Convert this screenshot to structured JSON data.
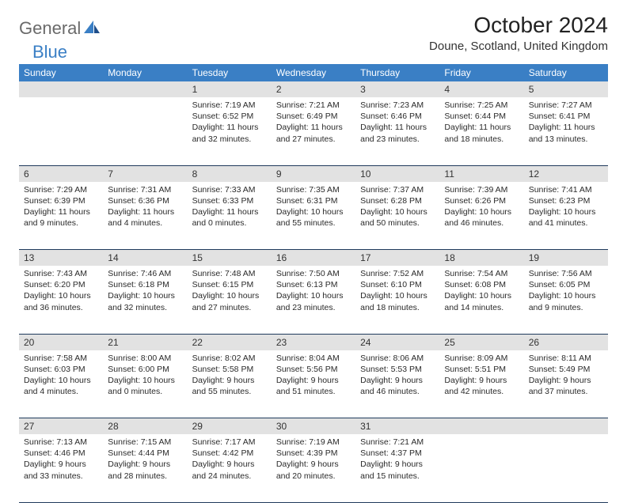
{
  "brand": {
    "general": "General",
    "blue": "Blue"
  },
  "colors": {
    "header_bg": "#3a7fc5",
    "header_fg": "#ffffff",
    "daynum_bg": "#e2e2e2",
    "rule": "#1f3a5c",
    "logo_gray": "#6a6a6a",
    "logo_blue": "#3a7fc5"
  },
  "title": "October 2024",
  "location": "Doune, Scotland, United Kingdom",
  "weekdays": [
    "Sunday",
    "Monday",
    "Tuesday",
    "Wednesday",
    "Thursday",
    "Friday",
    "Saturday"
  ],
  "month": {
    "first_weekday_index": 2,
    "days_in_month": 31
  },
  "days": {
    "1": {
      "sunrise": "7:19 AM",
      "sunset": "6:52 PM",
      "daylight": "11 hours and 32 minutes."
    },
    "2": {
      "sunrise": "7:21 AM",
      "sunset": "6:49 PM",
      "daylight": "11 hours and 27 minutes."
    },
    "3": {
      "sunrise": "7:23 AM",
      "sunset": "6:46 PM",
      "daylight": "11 hours and 23 minutes."
    },
    "4": {
      "sunrise": "7:25 AM",
      "sunset": "6:44 PM",
      "daylight": "11 hours and 18 minutes."
    },
    "5": {
      "sunrise": "7:27 AM",
      "sunset": "6:41 PM",
      "daylight": "11 hours and 13 minutes."
    },
    "6": {
      "sunrise": "7:29 AM",
      "sunset": "6:39 PM",
      "daylight": "11 hours and 9 minutes."
    },
    "7": {
      "sunrise": "7:31 AM",
      "sunset": "6:36 PM",
      "daylight": "11 hours and 4 minutes."
    },
    "8": {
      "sunrise": "7:33 AM",
      "sunset": "6:33 PM",
      "daylight": "11 hours and 0 minutes."
    },
    "9": {
      "sunrise": "7:35 AM",
      "sunset": "6:31 PM",
      "daylight": "10 hours and 55 minutes."
    },
    "10": {
      "sunrise": "7:37 AM",
      "sunset": "6:28 PM",
      "daylight": "10 hours and 50 minutes."
    },
    "11": {
      "sunrise": "7:39 AM",
      "sunset": "6:26 PM",
      "daylight": "10 hours and 46 minutes."
    },
    "12": {
      "sunrise": "7:41 AM",
      "sunset": "6:23 PM",
      "daylight": "10 hours and 41 minutes."
    },
    "13": {
      "sunrise": "7:43 AM",
      "sunset": "6:20 PM",
      "daylight": "10 hours and 36 minutes."
    },
    "14": {
      "sunrise": "7:46 AM",
      "sunset": "6:18 PM",
      "daylight": "10 hours and 32 minutes."
    },
    "15": {
      "sunrise": "7:48 AM",
      "sunset": "6:15 PM",
      "daylight": "10 hours and 27 minutes."
    },
    "16": {
      "sunrise": "7:50 AM",
      "sunset": "6:13 PM",
      "daylight": "10 hours and 23 minutes."
    },
    "17": {
      "sunrise": "7:52 AM",
      "sunset": "6:10 PM",
      "daylight": "10 hours and 18 minutes."
    },
    "18": {
      "sunrise": "7:54 AM",
      "sunset": "6:08 PM",
      "daylight": "10 hours and 14 minutes."
    },
    "19": {
      "sunrise": "7:56 AM",
      "sunset": "6:05 PM",
      "daylight": "10 hours and 9 minutes."
    },
    "20": {
      "sunrise": "7:58 AM",
      "sunset": "6:03 PM",
      "daylight": "10 hours and 4 minutes."
    },
    "21": {
      "sunrise": "8:00 AM",
      "sunset": "6:00 PM",
      "daylight": "10 hours and 0 minutes."
    },
    "22": {
      "sunrise": "8:02 AM",
      "sunset": "5:58 PM",
      "daylight": "9 hours and 55 minutes."
    },
    "23": {
      "sunrise": "8:04 AM",
      "sunset": "5:56 PM",
      "daylight": "9 hours and 51 minutes."
    },
    "24": {
      "sunrise": "8:06 AM",
      "sunset": "5:53 PM",
      "daylight": "9 hours and 46 minutes."
    },
    "25": {
      "sunrise": "8:09 AM",
      "sunset": "5:51 PM",
      "daylight": "9 hours and 42 minutes."
    },
    "26": {
      "sunrise": "8:11 AM",
      "sunset": "5:49 PM",
      "daylight": "9 hours and 37 minutes."
    },
    "27": {
      "sunrise": "7:13 AM",
      "sunset": "4:46 PM",
      "daylight": "9 hours and 33 minutes."
    },
    "28": {
      "sunrise": "7:15 AM",
      "sunset": "4:44 PM",
      "daylight": "9 hours and 28 minutes."
    },
    "29": {
      "sunrise": "7:17 AM",
      "sunset": "4:42 PM",
      "daylight": "9 hours and 24 minutes."
    },
    "30": {
      "sunrise": "7:19 AM",
      "sunset": "4:39 PM",
      "daylight": "9 hours and 20 minutes."
    },
    "31": {
      "sunrise": "7:21 AM",
      "sunset": "4:37 PM",
      "daylight": "9 hours and 15 minutes."
    }
  },
  "labels": {
    "sunrise": "Sunrise:",
    "sunset": "Sunset:",
    "daylight": "Daylight:"
  }
}
